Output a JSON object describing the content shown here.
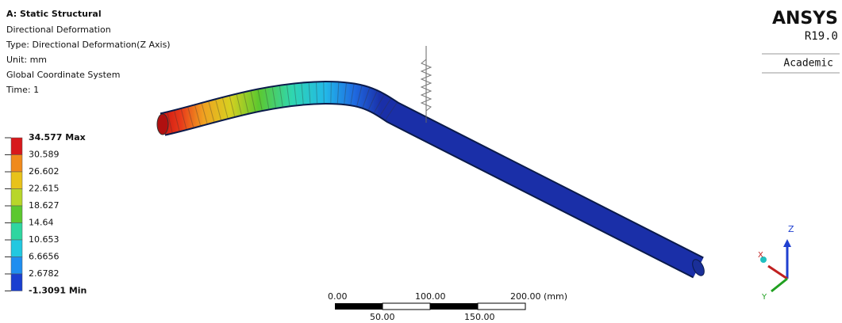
{
  "header": {
    "title": "A: Static Structural",
    "lines": [
      "Directional Deformation",
      "Type: Directional Deformation(Z Axis)",
      "Unit: mm",
      "Global Coordinate System",
      "Time: 1"
    ]
  },
  "legend": {
    "levels": [
      "34.577 Max",
      "30.589",
      "26.602",
      "22.615",
      "18.627",
      "14.64",
      "10.653",
      "6.6656",
      "2.6782",
      "-1.3091 Min"
    ],
    "colors": [
      "#d7191c",
      "#f08a1c",
      "#e8c21a",
      "#b8d62a",
      "#5cc82f",
      "#2fd6a0",
      "#22c8e0",
      "#1f8ef0",
      "#1a3fd0"
    ]
  },
  "logo": {
    "name": "ANSYS",
    "version": "R19.0",
    "edition": "Academic"
  },
  "scale_bar": {
    "top_labels": [
      "0.00",
      "100.00",
      "200.00 (mm)"
    ],
    "bottom_labels": [
      "50.00",
      "150.00"
    ]
  },
  "triad": {
    "z": "Z",
    "x": "X",
    "y": "Y"
  }
}
